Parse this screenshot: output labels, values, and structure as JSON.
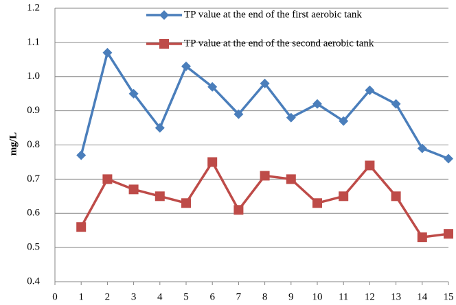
{
  "chart_data": {
    "type": "line",
    "y_label": "mg/L",
    "x": [
      1,
      2,
      3,
      4,
      5,
      6,
      7,
      8,
      9,
      10,
      11,
      12,
      13,
      14,
      15
    ],
    "series": [
      {
        "name": "TP value at the end of the first aerobic tank",
        "color": "#4a7ebb",
        "marker": "diamond",
        "values": [
          0.77,
          1.07,
          0.95,
          0.85,
          1.03,
          0.97,
          0.89,
          0.98,
          0.88,
          0.92,
          0.87,
          0.96,
          0.92,
          0.79,
          0.76
        ]
      },
      {
        "name": "TP value at the end of the second aerobic tank",
        "color": "#be4b48",
        "marker": "square",
        "values": [
          0.56,
          0.7,
          0.67,
          0.65,
          0.63,
          0.75,
          0.61,
          0.71,
          0.7,
          0.63,
          0.65,
          0.74,
          0.65,
          0.53,
          0.54
        ]
      }
    ],
    "xlim": [
      0,
      15
    ],
    "xticks": [
      0,
      1,
      2,
      3,
      4,
      5,
      6,
      7,
      8,
      9,
      10,
      11,
      12,
      13,
      14,
      15
    ],
    "ylim": [
      0.4,
      1.2
    ],
    "yticks": [
      0.4,
      0.5,
      0.6,
      0.7,
      0.8,
      0.9,
      {
        "value": 1,
        "label": "1.0"
      },
      1.1,
      1.2
    ],
    "grid": true,
    "legend": "top"
  }
}
